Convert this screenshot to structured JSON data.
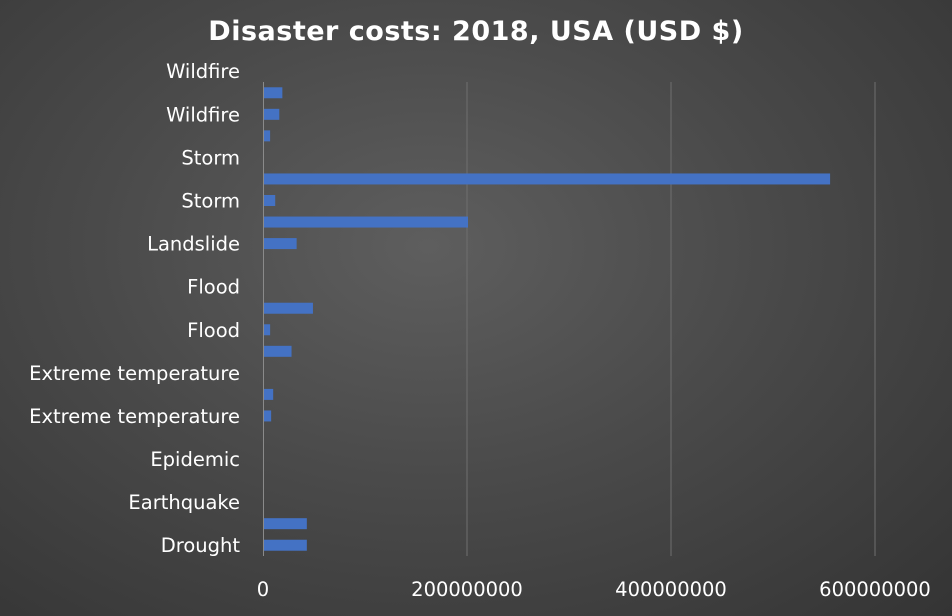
{
  "chart_data": {
    "type": "bar",
    "orientation": "horizontal",
    "title": "Disaster costs: 2018, USA (USD $)",
    "xlabel": "",
    "ylabel": "",
    "xlim": [
      0,
      600000000
    ],
    "x_ticks": [
      "0",
      "200000000",
      "400000000",
      "600000000"
    ],
    "x_tick_values": [
      0,
      200000000,
      400000000,
      600000000
    ],
    "grid": "vertical",
    "legend": "none",
    "bar_color": "#4472C4",
    "y_tick_labels": [
      {
        "label": "Drought",
        "slot": 0
      },
      {
        "label": "Earthquake",
        "slot": 2
      },
      {
        "label": "Epidemic",
        "slot": 4
      },
      {
        "label": "Extreme temperature",
        "slot": 6
      },
      {
        "label": "Extreme temperature",
        "slot": 8
      },
      {
        "label": "Flood",
        "slot": 10
      },
      {
        "label": "Flood",
        "slot": 12
      },
      {
        "label": "Landslide",
        "slot": 14
      },
      {
        "label": "Storm",
        "slot": 16
      },
      {
        "label": "Storm",
        "slot": 18
      },
      {
        "label": "Wildfire",
        "slot": 20
      },
      {
        "label": "Wildfire",
        "slot": 22
      }
    ],
    "values": [
      42000000,
      42000000,
      0,
      0,
      0,
      0,
      7000000,
      9000000,
      0,
      27000000,
      6000000,
      48000000,
      0,
      0,
      32000000,
      200000000,
      11000000,
      555000000,
      0,
      6000000,
      15000000,
      18000000
    ]
  }
}
